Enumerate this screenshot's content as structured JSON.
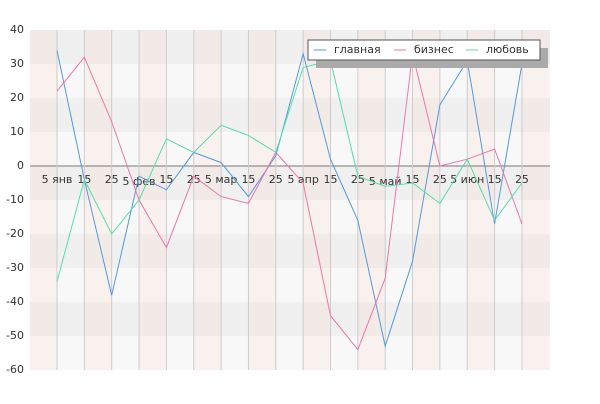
{
  "chart_data": {
    "type": "line",
    "categories": [
      "5 янв",
      "15",
      "25",
      "5 фев",
      "15",
      "25",
      "5 мар",
      "15",
      "25",
      "5 апр",
      "15",
      "25",
      "5 май",
      "15",
      "25",
      "5 июн",
      "15",
      "25"
    ],
    "series": [
      {
        "name": "главная",
        "color": "#5599dd",
        "values": [
          34,
          -4,
          -38,
          -3,
          -7,
          4,
          1,
          -9,
          3,
          33,
          2,
          -16,
          -53,
          -28,
          18,
          31,
          -17,
          30
        ]
      },
      {
        "name": "бизнес",
        "color": "#ee77aa",
        "values": [
          22,
          32,
          13,
          -10,
          -24,
          -3,
          -9,
          -11,
          4,
          -5,
          -44,
          -54,
          -33,
          33,
          0,
          2,
          5,
          -17
        ]
      },
      {
        "name": "любовь",
        "color": "#55ddaa",
        "values": [
          -34,
          -4,
          -20,
          -10,
          8,
          4,
          12,
          9,
          4,
          29,
          31,
          -3,
          -6,
          -5,
          -11,
          2,
          -16,
          -5
        ]
      }
    ],
    "ylim": [
      -60,
      40
    ],
    "yticks": [
      -60,
      -50,
      -40,
      -30,
      -20,
      -10,
      0,
      10,
      20,
      30,
      40
    ],
    "grid": true,
    "legend": "top-right"
  }
}
